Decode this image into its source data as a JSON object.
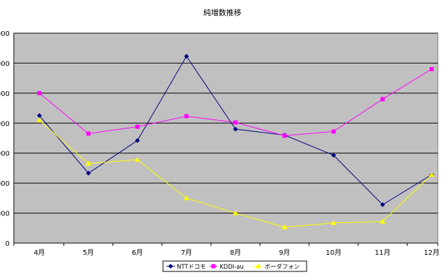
{
  "chart_data": {
    "type": "line",
    "title": "純増数推移",
    "categories": [
      "4月",
      "5月",
      "6月",
      "7月",
      "8月",
      "9月",
      "10月",
      "11月",
      "12月"
    ],
    "ylim": [
      0,
      7
    ],
    "yticks": [
      0,
      1,
      2,
      3,
      4,
      5,
      6,
      7
    ],
    "ytick_labels": [
      "0",
      "000",
      "000",
      "000",
      "000",
      "000",
      "000",
      "000"
    ],
    "grid": true,
    "legend_position": "bottom",
    "plot_background": "#c0c0c0",
    "series": [
      {
        "name": "NTTドコモ",
        "color": "#000080",
        "marker": "diamond",
        "values": [
          4.25,
          2.33,
          3.42,
          6.23,
          3.8,
          3.6,
          2.93,
          1.28,
          2.28
        ]
      },
      {
        "name": "KDDI-au",
        "color": "#ff00ff",
        "marker": "square",
        "values": [
          5.0,
          3.65,
          3.88,
          4.23,
          4.02,
          3.58,
          3.72,
          4.8,
          5.8
        ]
      },
      {
        "name": "ボーダフォン",
        "color": "#ffff00",
        "marker": "triangle",
        "values": [
          4.1,
          2.65,
          2.78,
          1.5,
          1.0,
          0.53,
          0.67,
          0.72,
          2.28
        ]
      }
    ]
  }
}
